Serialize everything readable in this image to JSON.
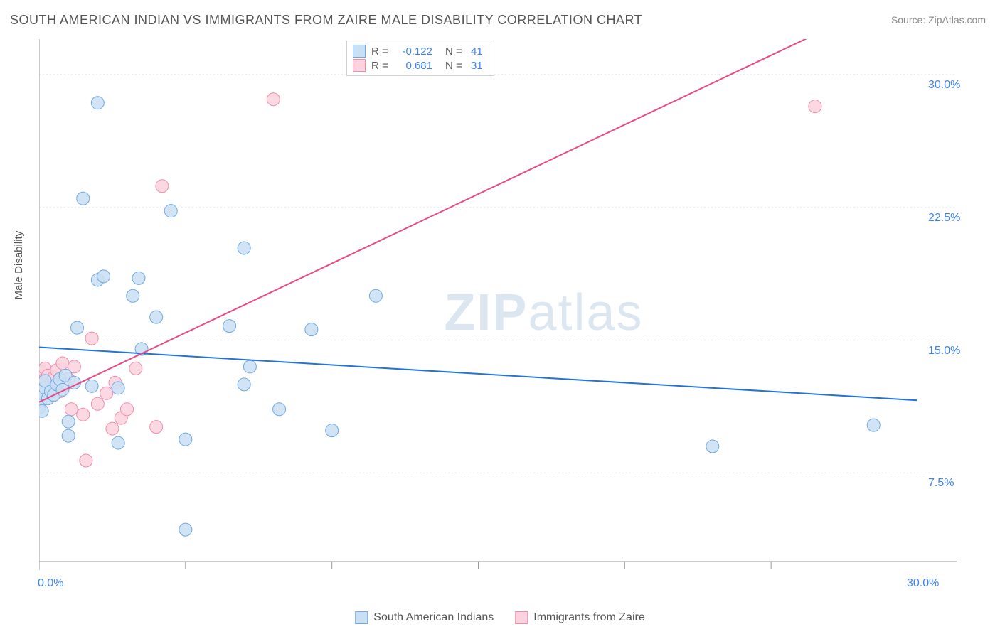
{
  "chart": {
    "title": "SOUTH AMERICAN INDIAN VS IMMIGRANTS FROM ZAIRE MALE DISABILITY CORRELATION CHART",
    "source": "Source: ZipAtlas.com",
    "y_axis_label": "Male Disability",
    "watermark_bold": "ZIP",
    "watermark_rest": "atlas",
    "background_color": "#ffffff",
    "grid_color": "#e3e3e3",
    "axis_color": "#999999",
    "tick_label_color": "#3b82f6",
    "x_min": 0.0,
    "x_max": 30.0,
    "y_min": 2.5,
    "y_max": 32.0,
    "x_ticks": [
      {
        "value": 0.0,
        "label": "0.0%"
      },
      {
        "value": 30.0,
        "label": "30.0%"
      }
    ],
    "y_ticks": [
      {
        "value": 7.5,
        "label": "7.5%"
      },
      {
        "value": 15.0,
        "label": "15.0%"
      },
      {
        "value": 22.5,
        "label": "22.5%"
      },
      {
        "value": 30.0,
        "label": "30.0%"
      }
    ],
    "x_minor_ticks": [
      5,
      10,
      15,
      20,
      25
    ],
    "series_a": {
      "name": "South American Indians",
      "color_fill": "#c9dff4",
      "color_stroke": "#6fa8e0",
      "line_color": "#2174d6",
      "R": -0.122,
      "R_display": "-0.122",
      "N": 41,
      "trend_start_y": 14.6,
      "trend_end_y": 11.6,
      "marker_radius": 9,
      "points": [
        [
          0.0,
          11.2
        ],
        [
          0.05,
          11.6
        ],
        [
          0.1,
          11.0
        ],
        [
          0.1,
          12.0
        ],
        [
          0.2,
          12.3
        ],
        [
          0.2,
          12.7
        ],
        [
          0.3,
          11.7
        ],
        [
          0.4,
          12.1
        ],
        [
          0.5,
          11.9
        ],
        [
          0.6,
          12.5
        ],
        [
          0.7,
          12.8
        ],
        [
          0.8,
          12.2
        ],
        [
          0.9,
          13.0
        ],
        [
          1.0,
          9.6
        ],
        [
          1.0,
          10.4
        ],
        [
          1.2,
          12.6
        ],
        [
          1.3,
          15.7
        ],
        [
          1.5,
          23.0
        ],
        [
          1.8,
          12.4
        ],
        [
          2.0,
          18.4
        ],
        [
          2.0,
          28.4
        ],
        [
          2.2,
          18.6
        ],
        [
          2.7,
          9.2
        ],
        [
          2.7,
          12.3
        ],
        [
          3.2,
          17.5
        ],
        [
          3.4,
          18.5
        ],
        [
          3.5,
          14.5
        ],
        [
          4.0,
          16.3
        ],
        [
          4.5,
          22.3
        ],
        [
          5.0,
          9.4
        ],
        [
          5.0,
          4.3
        ],
        [
          6.5,
          15.8
        ],
        [
          7.0,
          20.2
        ],
        [
          7.0,
          12.5
        ],
        [
          7.2,
          13.5
        ],
        [
          8.2,
          11.1
        ],
        [
          9.3,
          15.6
        ],
        [
          10.0,
          9.9
        ],
        [
          11.5,
          17.5
        ],
        [
          23.0,
          9.0
        ],
        [
          28.5,
          10.2
        ]
      ]
    },
    "series_b": {
      "name": "Immigrants from Zaire",
      "color_fill": "#fbd2dd",
      "color_stroke": "#f08bac",
      "line_color": "#e84a86",
      "R": 0.681,
      "R_display": "0.681",
      "N": 31,
      "trend_start_y": 11.5,
      "trend_end_y": 35.0,
      "marker_radius": 9,
      "points": [
        [
          0.0,
          11.2
        ],
        [
          0.05,
          11.6
        ],
        [
          0.1,
          12.6
        ],
        [
          0.1,
          13.2
        ],
        [
          0.2,
          12.8
        ],
        [
          0.2,
          13.4
        ],
        [
          0.3,
          12.0
        ],
        [
          0.3,
          13.0
        ],
        [
          0.4,
          12.4
        ],
        [
          0.5,
          12.9
        ],
        [
          0.6,
          13.3
        ],
        [
          0.7,
          12.1
        ],
        [
          0.8,
          13.7
        ],
        [
          0.9,
          12.5
        ],
        [
          1.0,
          12.8
        ],
        [
          1.1,
          11.1
        ],
        [
          1.2,
          13.5
        ],
        [
          1.5,
          10.8
        ],
        [
          1.6,
          8.2
        ],
        [
          1.8,
          15.1
        ],
        [
          2.0,
          11.4
        ],
        [
          2.3,
          12.0
        ],
        [
          2.5,
          10.0
        ],
        [
          2.6,
          12.6
        ],
        [
          2.8,
          10.6
        ],
        [
          3.0,
          11.1
        ],
        [
          3.3,
          13.4
        ],
        [
          4.0,
          10.1
        ],
        [
          4.2,
          23.7
        ],
        [
          8.0,
          28.6
        ],
        [
          26.5,
          28.2
        ]
      ]
    },
    "legend_labels": {
      "R_label": "R =",
      "N_label": "N ="
    }
  }
}
